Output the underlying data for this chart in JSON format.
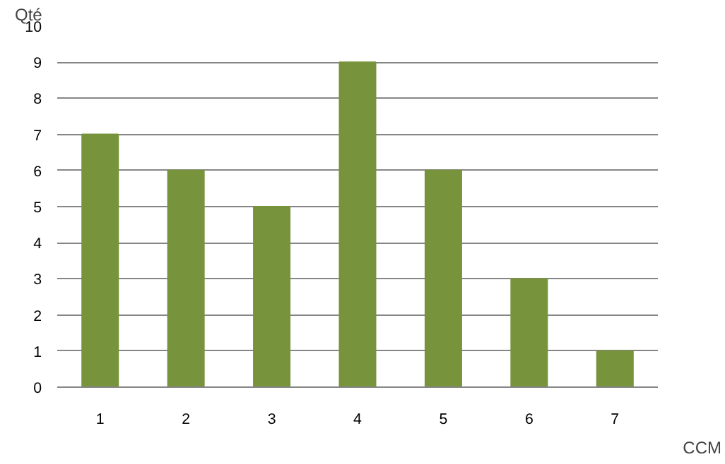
{
  "chart_data": {
    "type": "bar",
    "xlabel": "CCM",
    "ylabel": "Qté",
    "categories": [
      "1",
      "2",
      "3",
      "4",
      "5",
      "6",
      "7"
    ],
    "values": [
      7,
      6,
      5,
      9,
      6,
      3,
      1
    ],
    "color": "#77933c",
    "ylim": [
      0,
      10
    ],
    "yticks": [
      0,
      1,
      2,
      3,
      4,
      5,
      6,
      7,
      8,
      9,
      10
    ],
    "grid": "y"
  }
}
